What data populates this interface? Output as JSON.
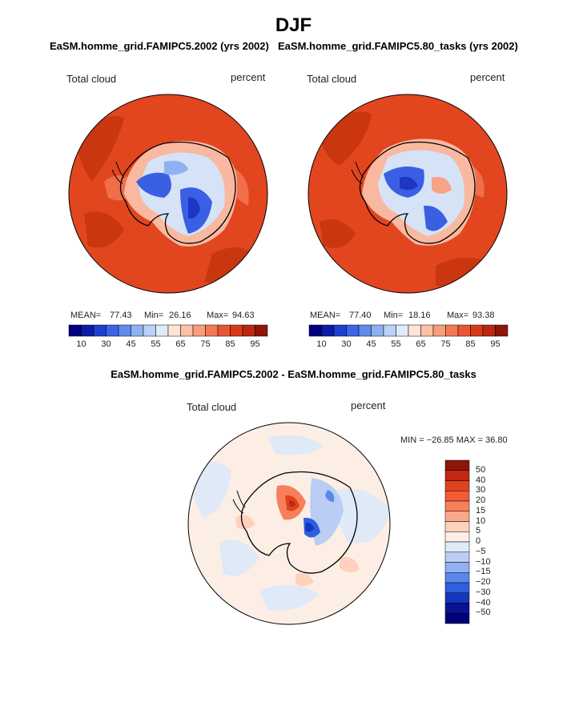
{
  "page": {
    "title": "DJF"
  },
  "panels": [
    {
      "title": "EaSM.homme_grid.FAMIPC5.2002 (yrs 2002)",
      "field_label": "Total cloud",
      "units_label": "percent",
      "stats": {
        "mean_label": "MEAN=",
        "mean": "77.43",
        "min_label": "Min=",
        "min": "26.16",
        "max_label": "Max=",
        "max": "94.63"
      },
      "colorbar": {
        "tick_labels": [
          "10",
          "30",
          "45",
          "55",
          "65",
          "75",
          "85",
          "95"
        ],
        "colors": [
          "#000080",
          "#0a1ea8",
          "#1f3fcf",
          "#3d64e6",
          "#6189ef",
          "#8fb1f3",
          "#bcd1f7",
          "#e1ebf8",
          "#fde4d5",
          "#fcc1a4",
          "#f89e7a",
          "#f27a55",
          "#e85733",
          "#d8391c",
          "#bb2710",
          "#8e1509"
        ]
      }
    },
    {
      "title": "EaSM.homme_grid.FAMIPC5.80_tasks (yrs 2002)",
      "field_label": "Total cloud",
      "units_label": "percent",
      "stats": {
        "mean_label": "MEAN=",
        "mean": "77.40",
        "min_label": "Min=",
        "min": "18.16",
        "max_label": "Max=",
        "max": "93.38"
      },
      "colorbar": {
        "tick_labels": [
          "10",
          "30",
          "45",
          "55",
          "65",
          "75",
          "85",
          "95"
        ],
        "colors": [
          "#000080",
          "#0a1ea8",
          "#1f3fcf",
          "#3d64e6",
          "#6189ef",
          "#8fb1f3",
          "#bcd1f7",
          "#e1ebf8",
          "#fde4d5",
          "#fcc1a4",
          "#f89e7a",
          "#f27a55",
          "#e85733",
          "#d8391c",
          "#bb2710",
          "#8e1509"
        ]
      }
    },
    {
      "title": "EaSM.homme_grid.FAMIPC5.2002 - EaSM.homme_grid.FAMIPC5.80_tasks",
      "field_label": "Total cloud",
      "units_label": "percent",
      "minmax_text": "MIN = −26.85  MAX =   36.80",
      "colorbar": {
        "tick_labels": [
          "50",
          "40",
          "30",
          "20",
          "15",
          "10",
          "5",
          "0",
          "−5",
          "−10",
          "−15",
          "−20",
          "−30",
          "−40",
          "−50"
        ],
        "colors": [
          "#8e1509",
          "#c0290f",
          "#e0421f",
          "#f35c34",
          "#f7805c",
          "#fba889",
          "#fdd1bc",
          "#fdeee5",
          "#dfe9f7",
          "#b9cdf5",
          "#91b1f1",
          "#5d86ea",
          "#2f5fdf",
          "#1536c0",
          "#06148f",
          "#00007a"
        ]
      }
    }
  ],
  "chart_data": [
    {
      "type": "heatmap",
      "projection": "south-polar stereographic",
      "title": "EaSM.homme_grid.FAMIPC5.2002 (yrs 2002)",
      "variable": "Total cloud",
      "units": "percent",
      "mean": 77.43,
      "min": 26.16,
      "max": 94.63,
      "contour_levels": [
        10,
        30,
        45,
        55,
        65,
        75,
        85,
        95
      ]
    },
    {
      "type": "heatmap",
      "projection": "south-polar stereographic",
      "title": "EaSM.homme_grid.FAMIPC5.80_tasks (yrs 2002)",
      "variable": "Total cloud",
      "units": "percent",
      "mean": 77.4,
      "min": 18.16,
      "max": 93.38,
      "contour_levels": [
        10,
        30,
        45,
        55,
        65,
        75,
        85,
        95
      ]
    },
    {
      "type": "heatmap",
      "projection": "south-polar stereographic",
      "title": "EaSM.homme_grid.FAMIPC5.2002 - EaSM.homme_grid.FAMIPC5.80_tasks",
      "variable": "Total cloud",
      "units": "percent",
      "min": -26.85,
      "max": 36.8,
      "contour_levels": [
        -50,
        -40,
        -30,
        -20,
        -15,
        -10,
        -5,
        0,
        5,
        10,
        15,
        20,
        30,
        40,
        50
      ]
    }
  ]
}
